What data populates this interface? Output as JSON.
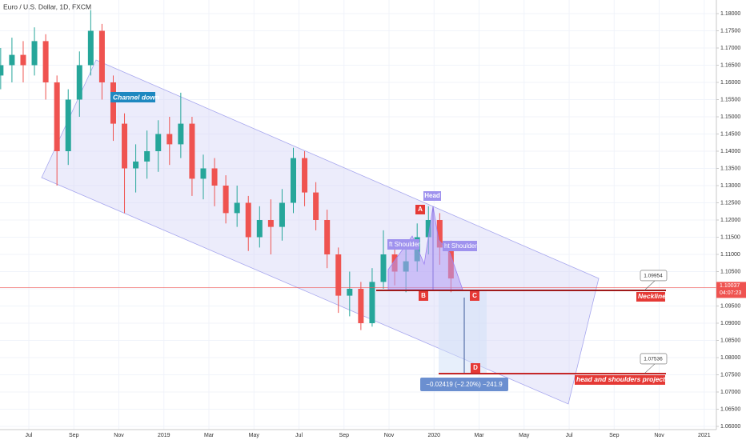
{
  "chart_data": {
    "type": "candlestick",
    "title": "Euro / U.S. Dollar, 1D, FXCM",
    "x": [
      -0.25,
      0.25,
      0.75,
      1.25,
      1.75,
      2.25,
      2.75,
      3.25,
      3.75,
      4.25,
      4.75,
      5.25,
      5.75,
      6.25,
      6.75,
      7.25,
      7.75,
      8.25,
      8.75,
      9.25,
      9.75,
      10.25,
      10.75,
      11.25,
      11.75,
      12.25,
      12.75,
      13.25,
      13.75,
      14.25,
      14.75,
      15.25,
      15.75,
      16.25,
      16.75,
      17.25,
      17.75,
      18.25,
      18.75,
      19.25,
      19.75
    ],
    "open": [
      1.162,
      1.165,
      1.168,
      1.165,
      1.172,
      1.16,
      1.14,
      1.155,
      1.165,
      1.175,
      1.16,
      1.148,
      1.135,
      1.137,
      1.14,
      1.145,
      1.142,
      1.148,
      1.132,
      1.135,
      1.13,
      1.122,
      1.125,
      1.115,
      1.12,
      1.118,
      1.125,
      1.138,
      1.128,
      1.12,
      1.11,
      1.098,
      1.1,
      1.09,
      1.102,
      1.11,
      1.105,
      1.108,
      1.115,
      1.12,
      1.112
    ],
    "high": [
      1.17,
      1.173,
      1.172,
      1.176,
      1.174,
      1.162,
      1.158,
      1.169,
      1.181,
      1.177,
      1.162,
      1.151,
      1.142,
      1.146,
      1.149,
      1.15,
      1.157,
      1.15,
      1.139,
      1.138,
      1.133,
      1.13,
      1.127,
      1.124,
      1.126,
      1.129,
      1.141,
      1.14,
      1.131,
      1.123,
      1.112,
      1.105,
      1.102,
      1.106,
      1.117,
      1.112,
      1.112,
      1.119,
      1.124,
      1.122,
      1.114
    ],
    "low": [
      1.158,
      1.16,
      1.16,
      1.162,
      1.155,
      1.13,
      1.136,
      1.15,
      1.162,
      1.155,
      1.143,
      1.122,
      1.128,
      1.132,
      1.134,
      1.136,
      1.138,
      1.127,
      1.126,
      1.124,
      1.119,
      1.118,
      1.111,
      1.112,
      1.11,
      1.114,
      1.122,
      1.124,
      1.117,
      1.106,
      1.093,
      1.092,
      1.088,
      1.089,
      1.1,
      1.101,
      1.099,
      1.105,
      1.11,
      1.107,
      1.099
    ],
    "close": [
      1.165,
      1.168,
      1.165,
      1.172,
      1.16,
      1.14,
      1.155,
      1.165,
      1.175,
      1.16,
      1.148,
      1.135,
      1.137,
      1.14,
      1.145,
      1.142,
      1.148,
      1.132,
      1.135,
      1.13,
      1.122,
      1.125,
      1.115,
      1.12,
      1.118,
      1.125,
      1.138,
      1.128,
      1.12,
      1.11,
      1.098,
      1.1,
      1.09,
      1.102,
      1.11,
      1.105,
      1.108,
      1.115,
      1.12,
      1.112,
      1.103
    ],
    "up_color": "#26a69a",
    "down_color": "#ef5350",
    "xlim": [
      -0.28,
      31.54
    ],
    "xticks": [
      {
        "value": 1,
        "label": "Jul"
      },
      {
        "value": 3,
        "label": "Sep"
      },
      {
        "value": 5,
        "label": "Nov"
      },
      {
        "value": 7,
        "label": "2019"
      },
      {
        "value": 9,
        "label": "Mar"
      },
      {
        "value": 11,
        "label": "May"
      },
      {
        "value": 13,
        "label": "Jul"
      },
      {
        "value": 15,
        "label": "Sep"
      },
      {
        "value": 17,
        "label": "Nov"
      },
      {
        "value": 19,
        "label": "2020"
      },
      {
        "value": 21,
        "label": "Mar"
      },
      {
        "value": 23,
        "label": "May"
      },
      {
        "value": 25,
        "label": "Jul"
      },
      {
        "value": 27,
        "label": "Sep"
      },
      {
        "value": 29,
        "label": "Nov"
      },
      {
        "value": 31,
        "label": "2021"
      }
    ],
    "ylim": [
      1.05907,
      1.18395
    ],
    "yticks": [
      {
        "value": 1.06,
        "label": "1.06000"
      },
      {
        "value": 1.065,
        "label": "1.06500"
      },
      {
        "value": 1.07,
        "label": "1.07000"
      },
      {
        "value": 1.075,
        "label": "1.07500"
      },
      {
        "value": 1.08,
        "label": "1.08000"
      },
      {
        "value": 1.085,
        "label": "1.08500"
      },
      {
        "value": 1.09,
        "label": "1.09000"
      },
      {
        "value": 1.095,
        "label": "1.09500"
      },
      {
        "value": 1.1,
        "label": "1.10000"
      },
      {
        "value": 1.105,
        "label": "1.10500"
      },
      {
        "value": 1.11,
        "label": "1.11000"
      },
      {
        "value": 1.115,
        "label": "1.11500"
      },
      {
        "value": 1.12,
        "label": "1.12000"
      },
      {
        "value": 1.125,
        "label": "1.12500"
      },
      {
        "value": 1.13,
        "label": "1.13000"
      },
      {
        "value": 1.135,
        "label": "1.13500"
      },
      {
        "value": 1.14,
        "label": "1.14000"
      },
      {
        "value": 1.145,
        "label": "1.14500"
      },
      {
        "value": 1.15,
        "label": "1.15000"
      },
      {
        "value": 1.155,
        "label": "1.15500"
      },
      {
        "value": 1.16,
        "label": "1.16000"
      },
      {
        "value": 1.165,
        "label": "1.16500"
      },
      {
        "value": 1.17,
        "label": "1.17000"
      },
      {
        "value": 1.175,
        "label": "1.17500"
      },
      {
        "value": 1.18,
        "label": "1.18000"
      }
    ],
    "grid": true,
    "current_price": {
      "value": 1.10037,
      "label": "1.10037"
    },
    "countdown": "04:07:23",
    "annotations": {
      "channel": "Channel down",
      "head": "Head",
      "left_shoulder": "ft Shoulder",
      "right_shoulder": "ht Shoulder",
      "point_a": "A",
      "point_b": "B",
      "point_c": "C",
      "point_d": "D",
      "neckline": "Neckline",
      "neckline_price": 1.09954,
      "projection": "head and shoulders projection",
      "projection_price": 1.07536,
      "measure": "−0.02419 (−2.20%) −241.9"
    }
  }
}
